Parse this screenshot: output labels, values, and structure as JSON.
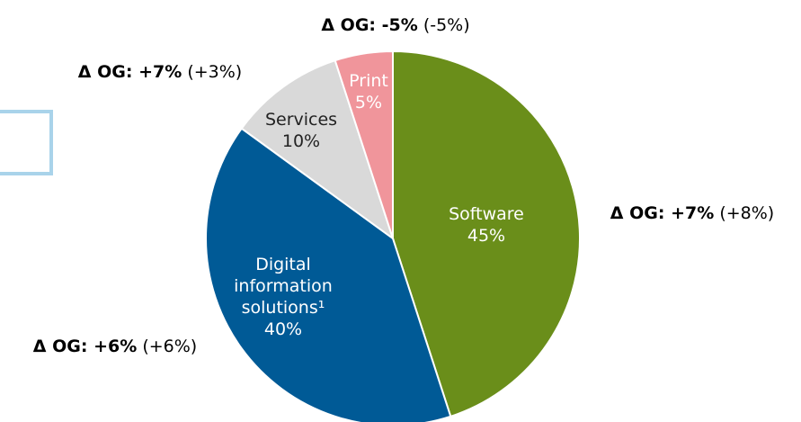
{
  "chart_data": {
    "type": "pie",
    "categories": [
      "Software",
      "Digital information solutions¹",
      "Services",
      "Print"
    ],
    "values": [
      45,
      40,
      10,
      5
    ],
    "value_labels": [
      "45%",
      "40%",
      "10%",
      "5%"
    ],
    "colors": [
      "#6a8e1a",
      "#005a96",
      "#d9d9d9",
      "#f0959b"
    ],
    "annotations": [
      {
        "text": "Δ OG: +7%",
        "note": "(+8%)"
      },
      {
        "text": "Δ OG: +6%",
        "note": "(+6%)"
      },
      {
        "text": "Δ OG:  +7%",
        "note": "(+3%)"
      },
      {
        "text": "Δ OG:  -5%",
        "note": "(-5%)"
      }
    ]
  }
}
